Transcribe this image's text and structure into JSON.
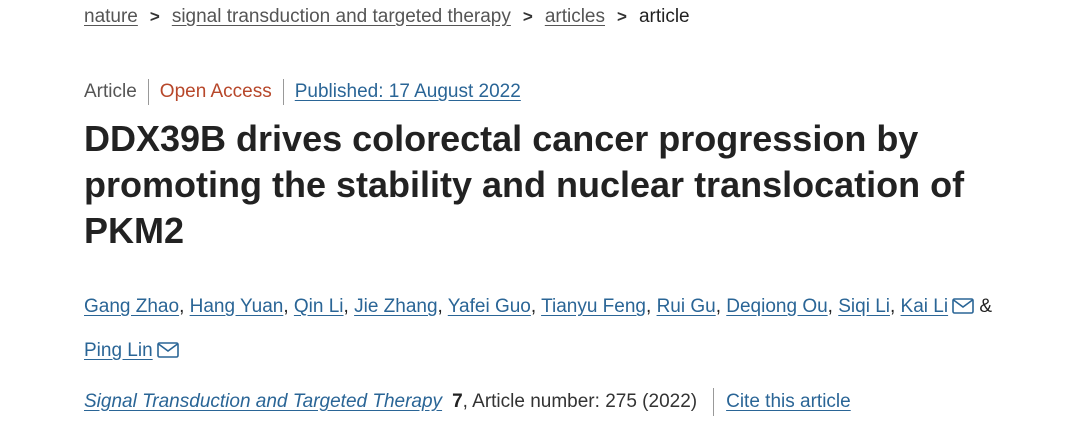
{
  "breadcrumb": {
    "items": [
      "nature",
      "signal transduction and targeted therapy",
      "articles"
    ],
    "current": "article",
    "separator": ">"
  },
  "meta": {
    "type": "Article",
    "access": "Open Access",
    "published": "Published: 17 August 2022"
  },
  "title": "DDX39B drives colorectal cancer progression by promoting the stability and nuclear translocation of PKM2",
  "authors": [
    "Gang Zhao",
    "Hang Yuan",
    "Qin Li",
    "Jie Zhang",
    "Yafei Guo",
    "Tianyu Feng",
    "Rui Gu",
    "Deqiong Ou",
    "Siqi Li",
    "Kai Li",
    "Ping Lin"
  ],
  "author_separator": ", ",
  "author_conjunction": "&",
  "citation": {
    "journal": "Signal Transduction and Targeted Therapy",
    "volume": "7",
    "article_number": ", Article number: 275 (2022)",
    "cite_link": "Cite this article"
  },
  "colors": {
    "link": "#2a6596",
    "open_access": "#b7472a",
    "text": "#222222"
  }
}
